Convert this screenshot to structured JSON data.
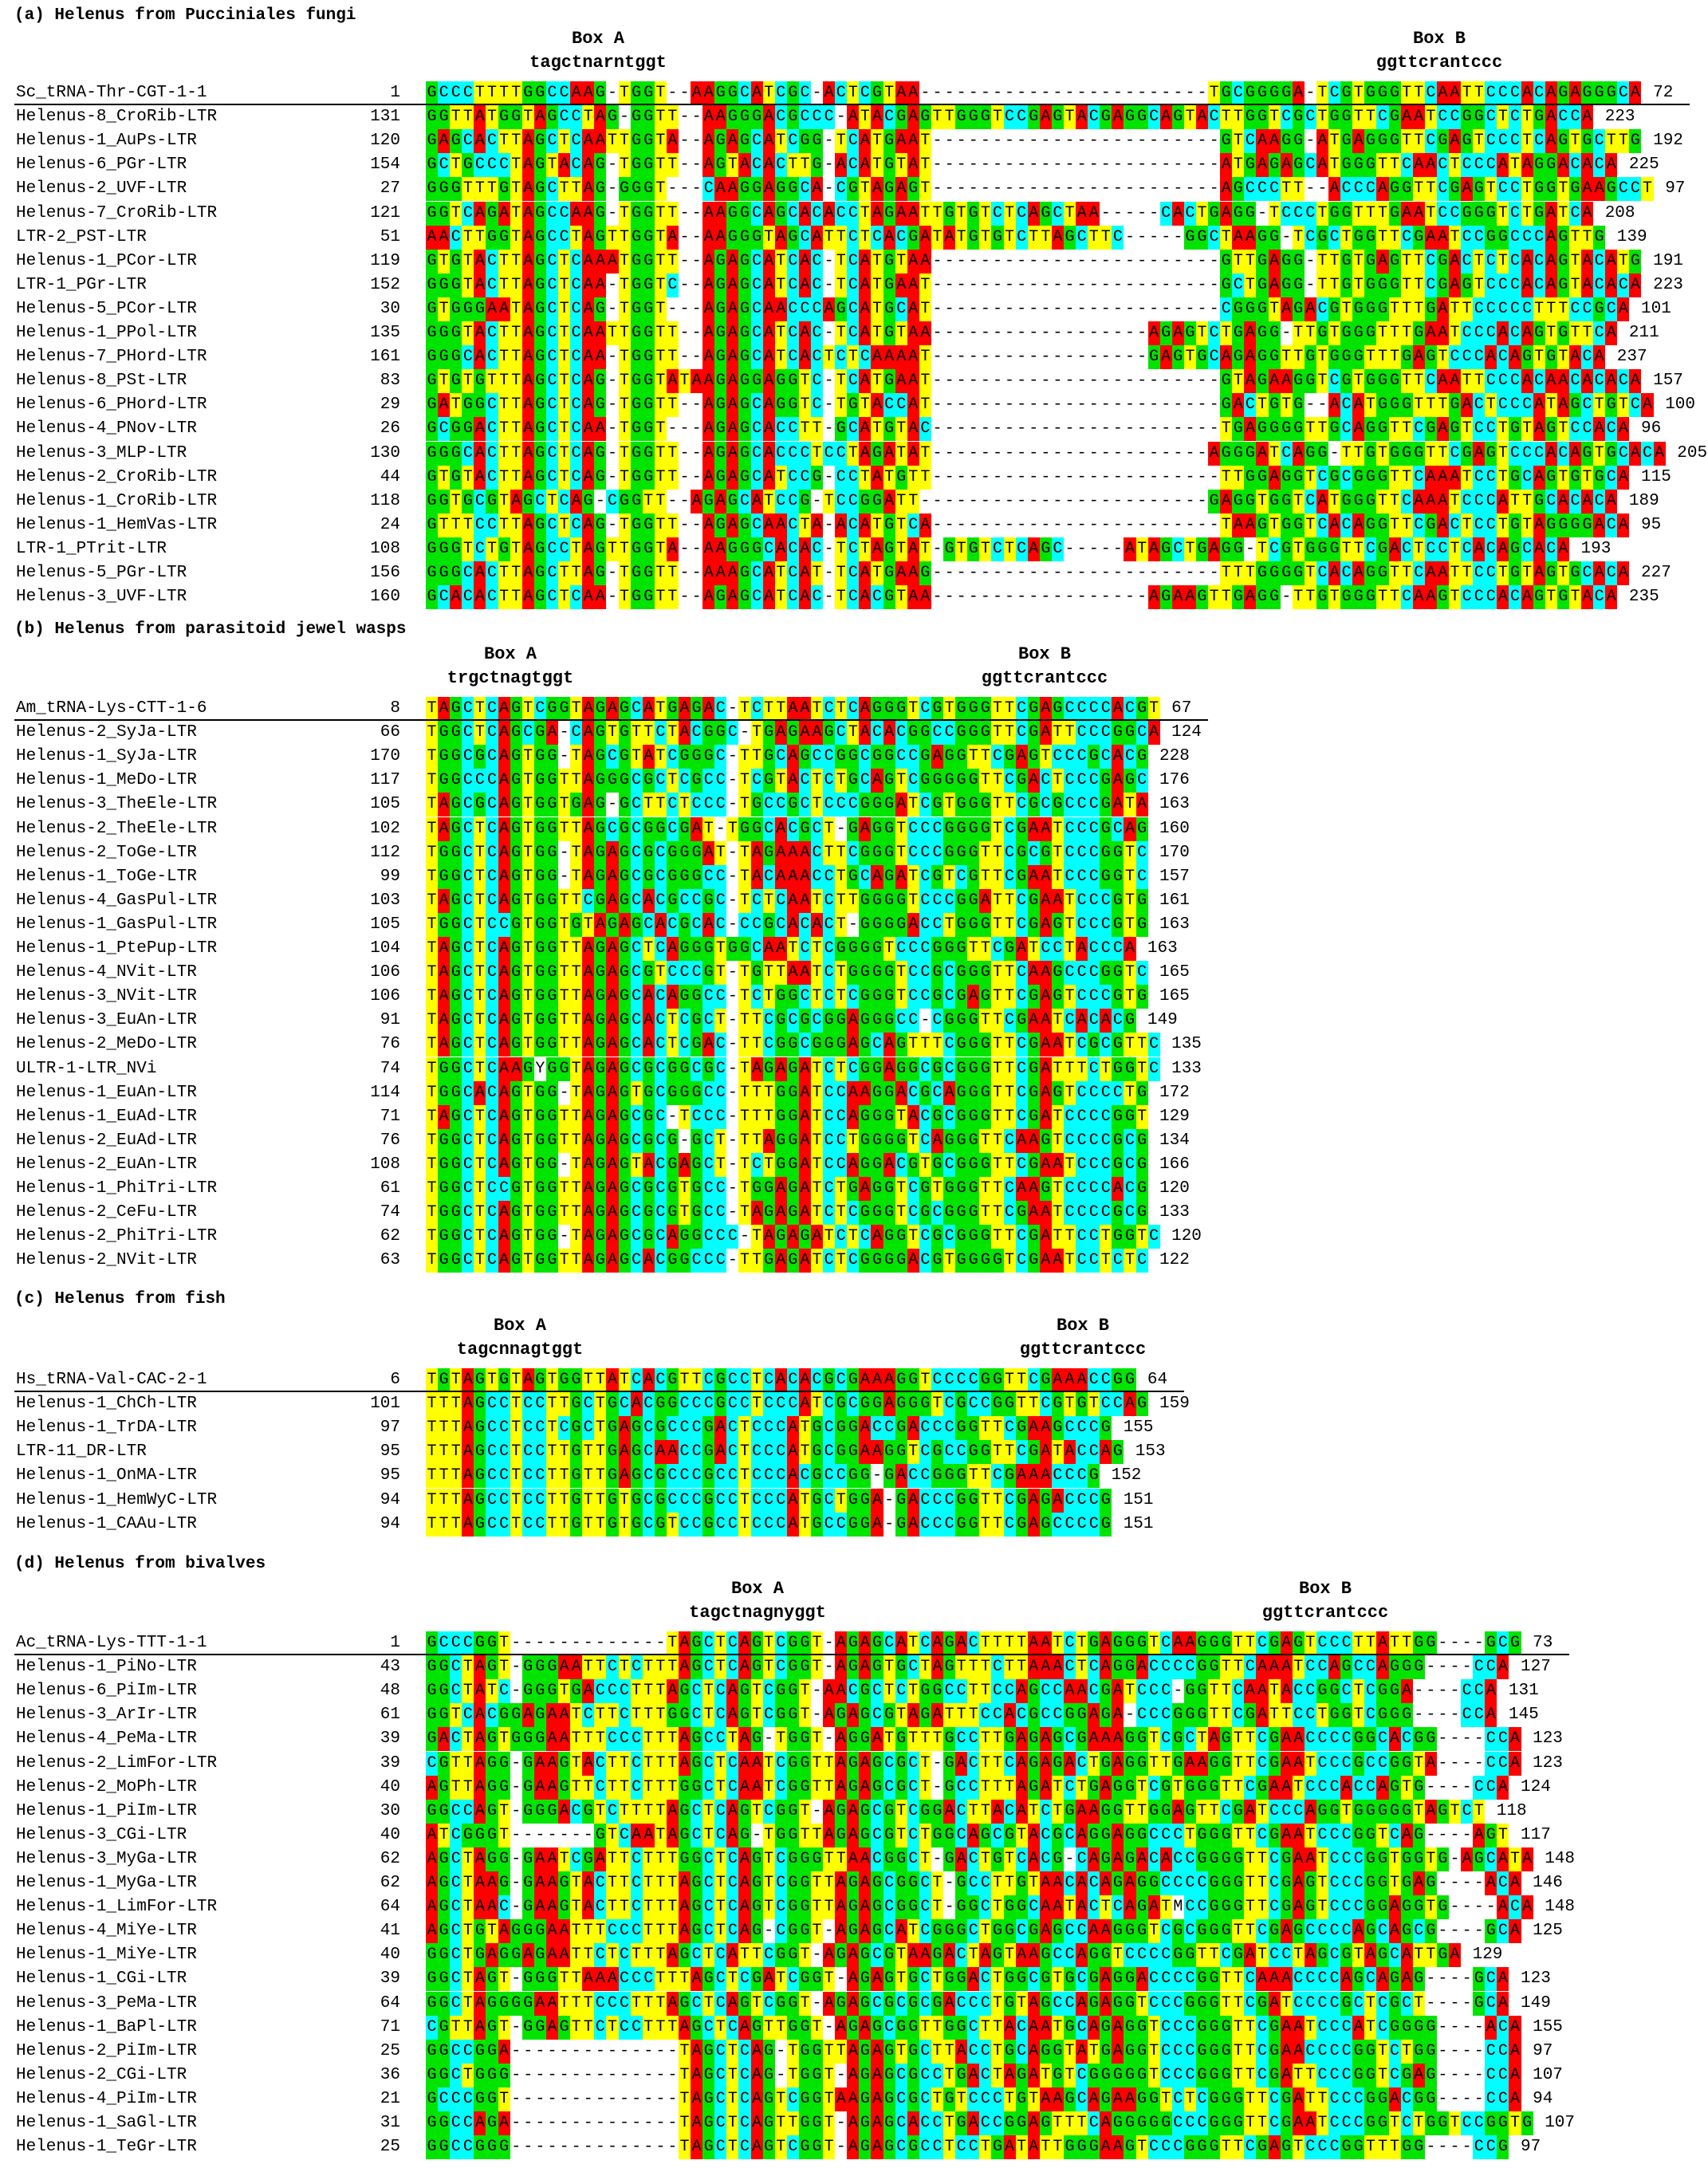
{
  "colors": {
    "A": "#ff0000",
    "T": "#ffff00",
    "G": "#00e400",
    "C": "#00ffff",
    "gap": "#ffffff"
  },
  "panels": [
    {
      "title": "(a) Helenus from Pucciniales fungi",
      "boxA": {
        "label": "Box A",
        "consensus": "tagctnarntggt"
      },
      "boxB": {
        "label": "Box B",
        "consensus": "ggttcrantccc"
      },
      "rows": [
        {
          "name": "Sc_tRNA-Thr-CGT-1-1",
          "start": "1",
          "seq": "GCCCTTTTGGCCAAG-TGGT--AAGGCATCGC-ACTCGTAA------------------------TGCGGGGA-TCGTGGGTTCAATTCCCACAGAGGGCA",
          "end": "72"
        },
        {
          "name": "Helenus-8_CroRib-LTR",
          "start": "131",
          "seq": "GGTTATGGTAGCCTAG-GGTT--AAGGGACGCCC-ATACGAGTTGGGTCCGAGTACGAGGCAGTACTTGGTCGCTGGTTCGAATCCGGCTCTGACCA",
          "end": "223"
        },
        {
          "name": "Helenus-1_AuPs-LTR",
          "start": "120",
          "seq": "GAGCACTTAGCTCAATTGGTA--AGAGCATCGG-TCATGAAT------------------------GTCAAGG-ATGAGGGTTCGAGTCCCTCAGTGCTTG",
          "end": "192"
        },
        {
          "name": "Helenus-6_PGr-LTR",
          "start": "154",
          "seq": "GCTGCCCTAGTACAG-TGGTT--AGTACACTTG-ACATGTAT------------------------ATGAGAGCATGGGTTCAACTCCCATAGGACACA",
          "end": "225"
        },
        {
          "name": "Helenus-2_UVF-LTR",
          "start": "27",
          "seq": "GGGTTTGTAGCTTAG-GGGT---CAAGGAGGCA-CGTAGAGT------------------------AGCCCTT--ACCCAGGTTCGAGTCCTGGTGAAGCCT",
          "end": "97"
        },
        {
          "name": "Helenus-7_CroRib-LTR",
          "start": "121",
          "seq": "GGTCAGATAGCCAAG-TGGTT--AAGGCAGCACACCTAGAATTGTGTCTCAGCTAA-----CACTGAGG-TCCCTGGTTTGAATCCGGGTCTGATCA",
          "end": "208"
        },
        {
          "name": "LTR-2_PST-LTR",
          "start": "51",
          "seq": "AACTTGGTAGCCTAGTTGGTA--AAGGGTAGCATTCTCACGATATGTGTCTTAGCTTC-----GGCTAAGG-TCGCTGGTTCGAATCCGGCCCAGTTG",
          "end": "139"
        },
        {
          "name": "Helenus-1_PCor-LTR",
          "start": "119",
          "seq": "GTGTACTTAGCTCAAATGGTT--AGAGCATCAC-TCATGTAA------------------------GTTGAGG-TTGTGAGTTCGACTCTCACAGTACATG",
          "end": "191"
        },
        {
          "name": "LTR-1_PGr-LTR",
          "start": "152",
          "seq": "GGGTACTTAGCTCAA-TGGTC--AGAGCATCAC-TCATGAAT------------------------GCTGAGG-TTGTGGGTTCGAGTCCCACAGTACACA",
          "end": "223"
        },
        {
          "name": "Helenus-5_PCor-LTR",
          "start": "30",
          "seq": "GTGGGAATAGCTCAG-TGGT---AGAGCAACCCAGCATGCAT------------------------CGGGTAGACGTGGGTTTGATTCCCCCTTTCCGCA",
          "end": "101"
        },
        {
          "name": "Helenus-1_PPol-LTR",
          "start": "135",
          "seq": "GGGTACTTAGCTCAATTGGTT--AGAGCATCAC-TCATGTAA------------------AGAGTCTGAGG-TTGTGGGTTTGAATCCCACAGTGTTCA",
          "end": "211"
        },
        {
          "name": "Helenus-7_PHord-LTR",
          "start": "161",
          "seq": "GGGCACTTAGCTCAA-TGGTT--AGAGCATCACTCTCAAAAT------------------GAGTGCAGAGGTTGTGGGTTTGAGTCCCACAGTGTACA",
          "end": "237"
        },
        {
          "name": "Helenus-8_PSt-LTR",
          "start": "83",
          "seq": "GTGTGTTTAGCTCAG-TGGTATAAGAGGAGGTC-TCATGAAT------------------------GTAGAAGGTCGTGGGTTCAATTCCCACAACACACA",
          "end": "157"
        },
        {
          "name": "Helenus-6_PHord-LTR",
          "start": "29",
          "seq": "GATGGCTTAGCTCAG-TGGTT--AGAGCAGGTC-TGTACCAT------------------------GACTGTG--ACATGGGTTTGACTCCCATAGCTGTCA",
          "end": "100"
        },
        {
          "name": "Helenus-4_PNov-LTR",
          "start": "26",
          "seq": "GCGGACTTAGCTCAA-TGGT---AGAGCACCTT-GCATGTAC------------------------TGAGGGGTTGCAGGTTCGAGTCCTGTAGTCCACA",
          "end": "96"
        },
        {
          "name": "Helenus-3_MLP-LTR",
          "start": "130",
          "seq": "GGGCACTTAGCTCAG-TGGTT--AGAGCACCCTCCTAGATAT-----------------------AGGGATCAGG-TTGTGGGTTCGAGTCCCACAGTGCACA",
          "end": "205"
        },
        {
          "name": "Helenus-2_CroRib-LTR",
          "start": "44",
          "seq": "GTGTACTTAGCTCAG-TGGTT--AGAGCATCCG-CCTATGTT------------------------TTGGAGGTCGCGGGTTCAAATCCTGCAGTGTGCA",
          "end": "115"
        },
        {
          "name": "Helenus-1_CroRib-LTR",
          "start": "118",
          "seq": "GGTGCGTAGCTCAG-CGGTT--AGAGCATCCG-TCCGGATT------------------------GAGGTGGTCATGGGTTCAAATCCCATTGCACACA",
          "end": "189"
        },
        {
          "name": "Helenus-1_HemVas-LTR",
          "start": "24",
          "seq": "GTTTCCTTAGCTCAG-TGGTT--AGAGCAACTA-ACATGTCA------------------------TAAGTGGTCACAGGTTCGACTCCTGTAGGGGACA",
          "end": "95"
        },
        {
          "name": "LTR-1_PTrit-LTR",
          "start": "108",
          "seq": "GGGTCTGTAGCCTAGTTGGTA--AAGGGCACAC-TCTAGTAT-GTGTCTCAGC-----ATAGCTGAGG-TCGTGGGTTCGACTCCTCACAGCACA",
          "end": "193"
        },
        {
          "name": "Helenus-5_PGr-LTR",
          "start": "156",
          "seq": "GGGCACTTAGCTTAG-TGGTT--AAAGCATCAT-TCATGAAG------------------------TTTGGGGTCACAGGTTCAATTCCTGTAGTGCACA",
          "end": "227"
        },
        {
          "name": "Helenus-3_UVF-LTR",
          "start": "160",
          "seq": "GCACACTTAGCTCAA-TGGTT--AGAGCATCAC-TCACGTAA------------------AGAAGTTGAGG-TTGTGGGTTCAAGTCCCACAGTGTACA",
          "end": "235"
        }
      ]
    },
    {
      "title": "(b) Helenus from parasitoid jewel wasps",
      "boxA": {
        "label": "Box A",
        "consensus": "trgctnagtggt"
      },
      "boxB": {
        "label": "Box B",
        "consensus": "ggttcrantccc"
      },
      "rows": [
        {
          "name": "Am_tRNA-Lys-CTT-1-6",
          "start": "8",
          "seq": "TAGCTCAGTCGGTAGAGCATGAGAC-TCTTAATCTCAGGGTCGTGGGTTCGAGCCCCACGT",
          "end": "67"
        },
        {
          "name": "Helenus-2_SyJa-LTR",
          "start": "66",
          "seq": "TGGCTCAGCGA-CAGTGTTCTACGGC-TGAGAAGCTACACGGCCGGGTTCGATTCCCGGCA",
          "end": "124"
        },
        {
          "name": "Helenus-1_SyJa-LTR",
          "start": "170",
          "seq": "TGGCGCAGTGG-TAGCGTATCGGGC-TTGCAGCCGGCGGCCGAGGTTCGAGTCCCGCACG",
          "end": "228"
        },
        {
          "name": "Helenus-1_MeDo-LTR",
          "start": "117",
          "seq": "TGGCCCAGTGGTTAGGGCGCTCGCC-TCGTACTCTGCAGTCGGGGGTTCGACTCCCGAGC",
          "end": "176"
        },
        {
          "name": "Helenus-3_TheEle-LTR",
          "start": "105",
          "seq": "TAGCGCAGTGGTGAG-GCTTCTCCC-TGCCGCTCCCGGGATCGTGGGTTCGCGCCCGATA",
          "end": "163"
        },
        {
          "name": "Helenus-2_TheEle-LTR",
          "start": "102",
          "seq": "TAGCTCAGTGGTTAGCGCGGCGAT-TGGCACGCT-GAGGTCCCGGGGTCGAATCCCGCAG",
          "end": "160"
        },
        {
          "name": "Helenus-2_ToGe-LTR",
          "start": "112",
          "seq": "TGGCTCAGTGG-TAGAGCGCGGGAT-TAGAAACTTCGGGTCCCGGGTTCGCGTCCCGGTC",
          "end": "170"
        },
        {
          "name": "Helenus-1_ToGe-LTR",
          "start": "99",
          "seq": "TGGCTCAGTGG-TAGAGCGCGGGCC-TACAAACCTGCAGATCGTCGTTCGAATCCCGGTC",
          "end": "157"
        },
        {
          "name": "Helenus-4_GasPul-LTR",
          "start": "103",
          "seq": "TAGCTCAGTGGTTCGAGCACGCCGC-TCTCAATCTTGGGGTCCCGGATTCGAATCCCGTG",
          "end": "161"
        },
        {
          "name": "Helenus-1_GasPul-LTR",
          "start": "105",
          "seq": "TGGCTCCGTGGTGTAGAGCACGCAC-CCGCACACT-GGGGACCTGGGTTCGAGTCCCGTG",
          "end": "163"
        },
        {
          "name": "Helenus-1_PtePup-LTR",
          "start": "104",
          "seq": "TAGCTCAGTGGTTAGAGCTCAGGGTGGCAATCTCGGGGTCCCGGGTTCGATCCTACCCA",
          "end": "163"
        },
        {
          "name": "Helenus-4_NVit-LTR",
          "start": "106",
          "seq": "TAGCTCAGTGGTTAGAGCGTCCCGT-TGTTAATCTGGGGTCCGCGGGTTCAAGCCCGGTC",
          "end": "165"
        },
        {
          "name": "Helenus-3_NVit-LTR",
          "start": "106",
          "seq": "TAGCTCAGTGGTTAGAGCACAGGCC-TCTGGCTCTCGGGTCCGCGAGTTCGAGTCCCGTG",
          "end": "165"
        },
        {
          "name": "Helenus-3_EuAn-LTR",
          "start": "91",
          "seq": "TAGCTCAGTGGTTAGAGCACTCGCT-TTCGCGCGGAGGGCC-CGGGTTCGAATCACACG",
          "end": "149"
        },
        {
          "name": "Helenus-2_MeDo-LTR",
          "start": "76",
          "seq": "TAGCTCAGTGGTTAGAGCACTCGAC-TTCGGCGGGAGCAGTTTCGGGTTCGAATCGCGTTC",
          "end": "135"
        },
        {
          "name": "ULTR-1-LTR_NVi",
          "start": "74",
          "seq": "TGGCTCAAGYGGTAGAGCGCGGCGC-TAGAGATCTCGGAGGCGCGGGTTCGATTTCTGGTC",
          "end": "133"
        },
        {
          "name": "Helenus-1_EuAn-LTR",
          "start": "114",
          "seq": "TGGCACAGTGG-TAGAGTGCGGGCC-TTTGGATCCAAGGACGCAGGGTTCGAGTCCCCTG",
          "end": "172"
        },
        {
          "name": "Helenus-1_EuAd-LTR",
          "start": "71",
          "seq": "TAGCTCAGTGGTTAGAGCGC-TCCC-TTTGGATCCAGGGTACGCGGGTTCGATCCCCGGT",
          "end": "129"
        },
        {
          "name": "Helenus-2_EuAd-LTR",
          "start": "76",
          "seq": "TGGCTCAGTGGTTAGAGCGCG-GCT-TTAGGATCCTGGGGTCAGGGTTCAAGTCCCCGCG",
          "end": "134"
        },
        {
          "name": "Helenus-2_EuAn-LTR",
          "start": "108",
          "seq": "TGGCTCAGTGG-TAGAGTACGAGCT-TCTGGATCCAGGACGTGCGGGTTCGAATCCCGCG",
          "end": "166"
        },
        {
          "name": "Helenus-1_PhiTri-LTR",
          "start": "61",
          "seq": "TGGCTCCGTGGTTAGAGCGCGTGCC-TGGAGATCTGAGGTCGTGGGTTCAAGTCCCCACG",
          "end": "120"
        },
        {
          "name": "Helenus-2_CeFu-LTR",
          "start": "74",
          "seq": "TGGCTCAGTGGTTAGAGCGCGTGCC-TAGAGATCTCGGGTCGCGGGTTCGAATCCCCGCG",
          "end": "133"
        },
        {
          "name": "Helenus-2_PhiTri-LTR",
          "start": "62",
          "seq": "TGGCTCAGTGG-TAGAGCGCAGGCCC-TAGAGATCTCAGGTCGCGGGTTCGATTCCTGGTC",
          "end": "120"
        },
        {
          "name": "Helenus-2_NVit-LTR",
          "start": "63",
          "seq": "TGGCTCAGTGGTTAGAGCACGGCCC-TTGAGATCTCGGGGACGTGGGGTCGAATCCTCTC",
          "end": "122"
        }
      ]
    },
    {
      "title": "(c) Helenus from fish",
      "boxA": {
        "label": "Box A",
        "consensus": "tagcnnagtggt"
      },
      "boxB": {
        "label": "Box B",
        "consensus": "ggttcrantccc"
      },
      "rows": [
        {
          "name": "Hs_tRNA-Val-CAC-2-1",
          "start": "6",
          "seq": "TGTAGTGTAGTGGTTATCACGTTCGCCTCACACGCGAAAGGTCCCCGGTTCGAAACCGG",
          "end": "64"
        },
        {
          "name": "Helenus-1_ChCh-LTR",
          "start": "101",
          "seq": "TTTAGCCTCCTTGCTGCACGGCCCGCCTCCCATCGCGGAGGGTCGCCGGTTCGTGTCCAG",
          "end": "159"
        },
        {
          "name": "Helenus-1_TrDA-LTR",
          "start": "97",
          "seq": "TTTAGCCTCCTCGCTGAGCGCCCGACTCCCATGCGGACCGACCCGGTTCGAAGCCCG",
          "end": "155"
        },
        {
          "name": "LTR-11_DR-LTR",
          "start": "95",
          "seq": "TTTAGCCTCCTTGTTGAGCAACCGACTCCCATGCGGAAGGTCGCCGGTTCGATACCAG",
          "end": "153"
        },
        {
          "name": "Helenus-1_OnMA-LTR",
          "start": "95",
          "seq": "TTTAGCCTCCTTGTTGAGCGCCCGCCTCCCACGCCGG-GACCGGGTTCGAAACCCG",
          "end": "152"
        },
        {
          "name": "Helenus-1_HemWyC-LTR",
          "start": "94",
          "seq": "TTTAGCCTCCTTGTTGTGCGCCCGCCTCCCATGCTGGA-GACCCGGTTCGAGACCCG",
          "end": "151"
        },
        {
          "name": "Helenus-1_CAAu-LTR",
          "start": "94",
          "seq": "TTTAGCCTCCTTGTTGTGCGTCCGCCTCCCATGCCGGA-GACCCGGTTCGAGCCCCG",
          "end": "151"
        }
      ]
    },
    {
      "title": "(d) Helenus from bivalves",
      "boxA": {
        "label": "Box A",
        "consensus": "tagctnagnyggt"
      },
      "boxB": {
        "label": "Box B",
        "consensus": "ggttcrantccc"
      },
      "rows": [
        {
          "name": "Ac_tRNA-Lys-TTT-1-1",
          "start": "1",
          "seq": "GCCCGGT-------------TAGCTCAGTCGGT-AGAGCATCAGACTTTTAATCTGAGGGTCAAGGGTTCGAGTCCCTTATTGG----GCG",
          "end": "73"
        },
        {
          "name": "Helenus-1_PiNo-LTR",
          "start": "43",
          "seq": "GGCTAGT-GGGAATTCTCTTTAGCTCAGTCGGT-AGAGTGCTAGTTTCTTAAACTCAGGACCCCGGTTCAAATCCAGCCAGGG----CCA",
          "end": "127"
        },
        {
          "name": "Helenus-6_PiIm-LTR",
          "start": "48",
          "seq": "GGCTATC-GGGTGACCCTTTAGCTCAGTCGGT-AACGCTCTGGCCTTCCAGCCAACGATCCC-GGTTCAATACCGGCTCGGA----CCA",
          "end": "131"
        },
        {
          "name": "Helenus-3_ArIr-LTR",
          "start": "61",
          "seq": "GGTCACGGAGAATCTTCTTTGGCTCAGTCGGT-AGAGCGTAGATTTCCACGCCGGAGA-CCCGGGTTCGATTCCTGGTCGGG----CCA",
          "end": "145"
        },
        {
          "name": "Helenus-4_PeMa-LTR",
          "start": "39",
          "seq": "GACTAGTGGGAATTTCCCTTTAGCCTAG-TGGT-AGGATGTTTGCCTTGAGAGCGAAAGGTCGCTAGTTCGAACCCCGGCACGG----CCA",
          "end": "123"
        },
        {
          "name": "Helenus-2_LimFor-LTR",
          "start": "39",
          "seq": "CGTTAGG-GAAGTACTTCTTTAGCTCAATCGGTTAGAGCGCT-GACTTCAGAGACTGAGGTTGAAGGTTCGAATCCCGCCGGTA----CCA",
          "end": "123"
        },
        {
          "name": "Helenus-2_MoPh-LTR",
          "start": "40",
          "seq": "AGTTAGG-GAAGTTCTTCTTTGGCTCAATCGGTTAGAGCGCT-GCCTTTAGATCTGAGGTCGTGGGTTCGAATCCCACCAGTG----CCA",
          "end": "124"
        },
        {
          "name": "Helenus-1_PiIm-LTR",
          "start": "30",
          "seq": "GGCCAGT-GGGACGTCTTTTAGCTCAGTCGGT-AGAGCGTCGGACTTACATCTGAAGGTTGGAGTTCGATCCCAGGTGGGGGTAGTCT",
          "end": "118"
        },
        {
          "name": "Helenus-3_CGi-LTR",
          "start": "40",
          "seq": "ATCGGGT-------GTCAATAGCTCAG-TGGTTAGAGCGTCTGGCAGCGTACGCAGGAGGCCCTGGGTTCGAATCCCGGTCAG----AGT",
          "end": "117"
        },
        {
          "name": "Helenus-3_MyGa-LTR",
          "start": "62",
          "seq": "AGCTAGG-GAATCGATTCTTTGGCTCAGTCGGGTTAACGGCT-GACTGTCACG-CAGAGACACCGGGGTTCGAATCCCGGTGGTG-AGCATA",
          "end": "148"
        },
        {
          "name": "Helenus-1_MyGa-LTR",
          "start": "62",
          "seq": "AGCTAAG-GAAGTACTTCTTTAGCTCAGTCGGTTAGAGCGGCT-GCCTTGTAACACAGAGGCCCCGGGTTCGAGTCCCGGTGAG----ACA",
          "end": "146"
        },
        {
          "name": "Helenus-1_LimFor-LTR",
          "start": "64",
          "seq": "AGCTAAC-GAAGTACTTCTTTAGCTCAGTCGGTTAGAGCGGCT-GGCTGGCAATACTCAGATMCCGGGTTCGAGTCCCGGAGGTG----ACA",
          "end": "148"
        },
        {
          "name": "Helenus-4_MiYe-LTR",
          "start": "41",
          "seq": "AGCTGTAGGGAATTTCCCTTTAGCTCAG-CGGT-AGAGCATCGGGCTGGCGAGCCAAGGGTCGCGGGTTCGAGCCCCAGCAGCG----GCA",
          "end": "125"
        },
        {
          "name": "Helenus-1_MiYe-LTR",
          "start": "40",
          "seq": "GGCTGAGGAGAATTCTCTTTAGCTCATTCGGT-AGAGCGTAAGACTAGTAAGCCAGGTCCCCGGTTCGATCCTAGCGTAGCATTGA",
          "end": "129"
        },
        {
          "name": "Helenus-1_CGi-LTR",
          "start": "39",
          "seq": "GGCTAGT-GGGTTAAACCCTTTAGCTCGATCGGT-AGAGTGCTGGACTGGCGTGCGAGGACCCCGGTTCAAACCCCAGCAGAG----GCA",
          "end": "123"
        },
        {
          "name": "Helenus-3_PeMa-LTR",
          "start": "64",
          "seq": "GGCTAGGGGAATTTCCCTTTAGCTCAGTCGGT-AGAGCGCGCGACCCTGTAGCCAGAGGTCCCGGGTTCGATCCCCGCTCGCT----GCA",
          "end": "149"
        },
        {
          "name": "Helenus-1_BaPl-LTR",
          "start": "71",
          "seq": "CGTTAGT-GGAGTTCTCCTTTAGCTCAGTTGGT-AGAGCGGTTGGCTTACAATGCAGAGGTCCCGGGTTCGAATCCCATCGGGG----ACA",
          "end": "155"
        },
        {
          "name": "Helenus-2_PiIm-LTR",
          "start": "25",
          "seq": "GGCCGGA--------------TAGCTCAG-TGGTTAGAGTGCTTACCTGCAGGTATGAGGTCCCGGGTTCGAACCCCGGTCTGG----CCA",
          "end": "97"
        },
        {
          "name": "Helenus-2_CGi-LTR",
          "start": "36",
          "seq": "GGCTGGG--------------TAGCTCAG-TGGT-AGAGCGCCTGACTAGATGTCGGGGGTCCCGGGTTCGATTCCCGGTCGAG----CCA",
          "end": "107"
        },
        {
          "name": "Helenus-4_PiIm-LTR",
          "start": "21",
          "seq": "GCCCGGT--------------TAGCTCAGTCGGTAAGAGCGCTGTCCCTGTAAGCAGAAGGTCTCGGGTTCGATTCCCGGACGG----CCA",
          "end": "94"
        },
        {
          "name": "Helenus-1_SaGl-LTR",
          "start": "31",
          "seq": "GGCCAGA--------------TAGCTCAGTTGGT-AGAGCACCTGACCGGAGTTTCAGGGGGCCCGGGTTCGAATCCCGGTCTGGTCCGGTG",
          "end": "107"
        },
        {
          "name": "Helenus-1_TeGr-LTR",
          "start": "25",
          "seq": "GGCCGGG--------------TAGCTCAGTCGGT-AGAGCGCCTCCTGATATTGGGAAGTCCCGGGTTCGAGTCCCGGTTTGG----CCG",
          "end": "97"
        }
      ]
    }
  ]
}
